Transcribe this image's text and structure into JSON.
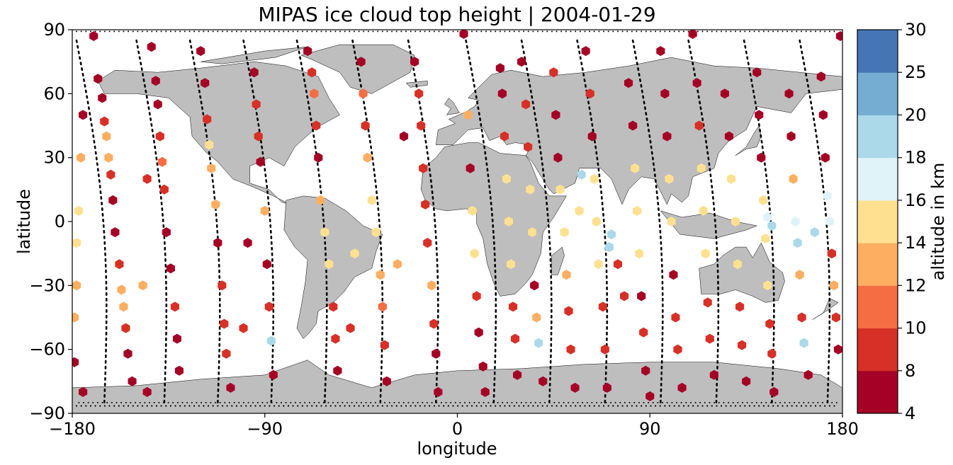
{
  "title": "MIPAS ice cloud top height | 2004-01-29",
  "colors": {
    "land": "#bebebe",
    "coast": "#000000",
    "track": "#000000",
    "bins": [
      "#a50026",
      "#d73027",
      "#f46d43",
      "#fdae61",
      "#fee090",
      "#e0f3f8",
      "#abd9e9",
      "#74add1",
      "#4575b4",
      "#313695"
    ]
  },
  "chart_data": {
    "type": "scatter",
    "title": "MIPAS ice cloud top height | 2004-01-29",
    "xlabel": "longitude",
    "ylabel": "latitude",
    "xlim": [
      -180,
      180
    ],
    "ylim": [
      -90,
      90
    ],
    "xticks": [
      -180,
      -90,
      0,
      90,
      180
    ],
    "xtick_labels": [
      "−180",
      "−90",
      "0",
      "90",
      "180"
    ],
    "yticks": [
      -90,
      -60,
      -30,
      0,
      30,
      60,
      90
    ],
    "ytick_labels": [
      "−90",
      "−60",
      "−30",
      "0",
      "30",
      "60",
      "90"
    ],
    "colorbar": {
      "label": "altitude in km",
      "boundaries": [
        4,
        8,
        10,
        12,
        14,
        16,
        18,
        20,
        25,
        30
      ],
      "tick_labels": [
        "4",
        "8",
        "10",
        "12",
        "14",
        "16",
        "18",
        "20",
        "25",
        "30"
      ],
      "colors": [
        "#a50026",
        "#d73027",
        "#f46d43",
        "#fdae61",
        "#fee090",
        "#e0f3f8",
        "#abd9e9",
        "#74add1",
        "#4575b4"
      ]
    },
    "orbits": [
      {
        "lon_start": -178,
        "lon_end": -165,
        "lat_start": 85,
        "lat_end": -85,
        "descending": true
      },
      {
        "lon_start": -150,
        "lon_end": -137,
        "lat_start": 85,
        "lat_end": -85,
        "descending": true
      },
      {
        "lon_start": -125,
        "lon_end": -112,
        "lat_start": 85,
        "lat_end": -85,
        "descending": true
      },
      {
        "lon_start": -100,
        "lon_end": -87,
        "lat_start": 85,
        "lat_end": -85,
        "descending": true
      },
      {
        "lon_start": -75,
        "lon_end": -62,
        "lat_start": 85,
        "lat_end": -85,
        "descending": true
      },
      {
        "lon_start": -49,
        "lon_end": -36,
        "lat_start": 85,
        "lat_end": -85,
        "descending": true
      },
      {
        "lon_start": -23,
        "lon_end": -10,
        "lat_start": 85,
        "lat_end": -85,
        "descending": true
      },
      {
        "lon_start": 4,
        "lon_end": 17,
        "lat_start": 85,
        "lat_end": -85,
        "descending": true
      },
      {
        "lon_start": 30,
        "lon_end": 43,
        "lat_start": 85,
        "lat_end": -85,
        "descending": true
      },
      {
        "lon_start": 56,
        "lon_end": 69,
        "lat_start": 85,
        "lat_end": -85,
        "descending": true
      },
      {
        "lon_start": 82,
        "lon_end": 95,
        "lat_start": 85,
        "lat_end": -85,
        "descending": true
      },
      {
        "lon_start": 108,
        "lon_end": 121,
        "lat_start": 85,
        "lat_end": -85,
        "descending": true
      },
      {
        "lon_start": 134,
        "lon_end": 147,
        "lat_start": 85,
        "lat_end": -85,
        "descending": true
      },
      {
        "lon_start": 160,
        "lon_end": 173,
        "lat_start": 85,
        "lat_end": -85,
        "descending": true
      }
    ],
    "points": [
      {
        "lon": -170,
        "lat": 87,
        "alt": 6
      },
      {
        "lon": -168,
        "lat": 67,
        "alt": 6
      },
      {
        "lon": -166,
        "lat": 58,
        "alt": 6
      },
      {
        "lon": -165,
        "lat": 47,
        "alt": 9
      },
      {
        "lon": -164,
        "lat": 40,
        "alt": 12
      },
      {
        "lon": -163,
        "lat": 30,
        "alt": 12
      },
      {
        "lon": -162,
        "lat": 22,
        "alt": 9
      },
      {
        "lon": -161,
        "lat": 10,
        "alt": 6
      },
      {
        "lon": -160,
        "lat": -5,
        "alt": 6
      },
      {
        "lon": -158,
        "lat": -20,
        "alt": 9
      },
      {
        "lon": -157,
        "lat": -32,
        "alt": 12
      },
      {
        "lon": -156,
        "lat": -40,
        "alt": 13
      },
      {
        "lon": -155,
        "lat": -50,
        "alt": 9
      },
      {
        "lon": -154,
        "lat": -62,
        "alt": 6
      },
      {
        "lon": -152,
        "lat": -75,
        "alt": 6
      },
      {
        "lon": -175,
        "lat": 50,
        "alt": 6
      },
      {
        "lon": -176,
        "lat": 30,
        "alt": 13
      },
      {
        "lon": -177,
        "lat": 5,
        "alt": 15
      },
      {
        "lon": -178,
        "lat": -10,
        "alt": 14
      },
      {
        "lon": -178,
        "lat": -30,
        "alt": 13
      },
      {
        "lon": -179,
        "lat": -45,
        "alt": 13
      },
      {
        "lon": -179,
        "lat": -66,
        "alt": 6
      },
      {
        "lon": -175,
        "lat": -80,
        "alt": 6
      },
      {
        "lon": -143,
        "lat": 82,
        "alt": 6
      },
      {
        "lon": -141,
        "lat": 66,
        "alt": 6
      },
      {
        "lon": -140,
        "lat": 55,
        "alt": 6
      },
      {
        "lon": -139,
        "lat": 40,
        "alt": 9
      },
      {
        "lon": -138,
        "lat": 28,
        "alt": 10
      },
      {
        "lon": -137,
        "lat": 15,
        "alt": 9
      },
      {
        "lon": -136,
        "lat": -5,
        "alt": 6
      },
      {
        "lon": -134,
        "lat": -22,
        "alt": 6
      },
      {
        "lon": -132,
        "lat": -40,
        "alt": 9
      },
      {
        "lon": -131,
        "lat": -55,
        "alt": 6
      },
      {
        "lon": -130,
        "lat": -70,
        "alt": 6
      },
      {
        "lon": -145,
        "lat": -80,
        "alt": 6
      },
      {
        "lon": -145,
        "lat": 20,
        "alt": 9
      },
      {
        "lon": -147,
        "lat": -30,
        "alt": 13
      },
      {
        "lon": -120,
        "lat": 80,
        "alt": 6
      },
      {
        "lon": -118,
        "lat": 65,
        "alt": 6
      },
      {
        "lon": -117,
        "lat": 48,
        "alt": 9
      },
      {
        "lon": -116,
        "lat": 36,
        "alt": 14
      },
      {
        "lon": -115,
        "lat": 25,
        "alt": 13
      },
      {
        "lon": -113,
        "lat": 8,
        "alt": 13
      },
      {
        "lon": -112,
        "lat": -10,
        "alt": 6
      },
      {
        "lon": -110,
        "lat": -30,
        "alt": 9
      },
      {
        "lon": -109,
        "lat": -48,
        "alt": 9
      },
      {
        "lon": -108,
        "lat": -62,
        "alt": 9
      },
      {
        "lon": -106,
        "lat": -78,
        "alt": 6
      },
      {
        "lon": -95,
        "lat": 70,
        "alt": 6
      },
      {
        "lon": -94,
        "lat": 55,
        "alt": 9
      },
      {
        "lon": -93,
        "lat": 40,
        "alt": 9
      },
      {
        "lon": -92,
        "lat": 28,
        "alt": 6
      },
      {
        "lon": -90,
        "lat": 5,
        "alt": 13
      },
      {
        "lon": -89,
        "lat": -20,
        "alt": 6
      },
      {
        "lon": -88,
        "lat": -40,
        "alt": 9
      },
      {
        "lon": -87,
        "lat": -56,
        "alt": 19
      },
      {
        "lon": -86,
        "lat": -72,
        "alt": 6
      },
      {
        "lon": -98,
        "lat": -10,
        "alt": 6
      },
      {
        "lon": -100,
        "lat": -50,
        "alt": 9
      },
      {
        "lon": -70,
        "lat": 80,
        "alt": 6
      },
      {
        "lon": -68,
        "lat": 70,
        "alt": 9
      },
      {
        "lon": -67,
        "lat": 60,
        "alt": 10
      },
      {
        "lon": -66,
        "lat": 45,
        "alt": 9
      },
      {
        "lon": -65,
        "lat": 30,
        "alt": 6
      },
      {
        "lon": -64,
        "lat": 10,
        "alt": 13
      },
      {
        "lon": -62,
        "lat": -5,
        "alt": 15
      },
      {
        "lon": -60,
        "lat": -20,
        "alt": 15
      },
      {
        "lon": -58,
        "lat": -40,
        "alt": 9
      },
      {
        "lon": -57,
        "lat": -55,
        "alt": 9
      },
      {
        "lon": -56,
        "lat": -70,
        "alt": 6
      },
      {
        "lon": -45,
        "lat": 75,
        "alt": 6
      },
      {
        "lon": -44,
        "lat": 60,
        "alt": 10
      },
      {
        "lon": -43,
        "lat": 45,
        "alt": 9
      },
      {
        "lon": -42,
        "lat": 30,
        "alt": 12
      },
      {
        "lon": -40,
        "lat": 10,
        "alt": 15
      },
      {
        "lon": -38,
        "lat": -5,
        "alt": 15
      },
      {
        "lon": -36,
        "lat": -25,
        "alt": 13
      },
      {
        "lon": -35,
        "lat": -40,
        "alt": 10
      },
      {
        "lon": -34,
        "lat": -58,
        "alt": 9
      },
      {
        "lon": -33,
        "lat": -75,
        "alt": 6
      },
      {
        "lon": -50,
        "lat": -50,
        "alt": 9
      },
      {
        "lon": -48,
        "lat": -15,
        "alt": 15
      },
      {
        "lon": -20,
        "lat": 75,
        "alt": 6
      },
      {
        "lon": -18,
        "lat": 60,
        "alt": 9
      },
      {
        "lon": -17,
        "lat": 45,
        "alt": 9
      },
      {
        "lon": -16,
        "lat": 25,
        "alt": 9
      },
      {
        "lon": -15,
        "lat": 8,
        "alt": 9
      },
      {
        "lon": -14,
        "lat": -10,
        "alt": 9
      },
      {
        "lon": -12,
        "lat": -30,
        "alt": 13
      },
      {
        "lon": -11,
        "lat": -48,
        "alt": 9
      },
      {
        "lon": -10,
        "lat": -62,
        "alt": 6
      },
      {
        "lon": -9,
        "lat": -80,
        "alt": 6
      },
      {
        "lon": -25,
        "lat": 40,
        "alt": 6
      },
      {
        "lon": -28,
        "lat": -20,
        "alt": 12
      },
      {
        "lon": 3,
        "lat": 88,
        "alt": 6
      },
      {
        "lon": 5,
        "lat": 50,
        "alt": 12
      },
      {
        "lon": 6,
        "lat": 25,
        "alt": 6
      },
      {
        "lon": 7,
        "lat": 5,
        "alt": 14
      },
      {
        "lon": 8,
        "lat": -15,
        "alt": 15
      },
      {
        "lon": 9,
        "lat": -35,
        "alt": 9
      },
      {
        "lon": 10,
        "lat": -52,
        "alt": 6
      },
      {
        "lon": 12,
        "lat": -68,
        "alt": 6
      },
      {
        "lon": 13,
        "lat": -80,
        "alt": 6
      },
      {
        "lon": 20,
        "lat": 72,
        "alt": 6
      },
      {
        "lon": 21,
        "lat": 60,
        "alt": 6
      },
      {
        "lon": 22,
        "lat": 40,
        "alt": 9
      },
      {
        "lon": 23,
        "lat": 20,
        "alt": 15
      },
      {
        "lon": 24,
        "lat": 0,
        "alt": 15
      },
      {
        "lon": 25,
        "lat": -20,
        "alt": 15
      },
      {
        "lon": 26,
        "lat": -40,
        "alt": 9
      },
      {
        "lon": 27,
        "lat": -55,
        "alt": 9
      },
      {
        "lon": 28,
        "lat": -72,
        "alt": 6
      },
      {
        "lon": 30,
        "lat": 75,
        "alt": 6
      },
      {
        "lon": 32,
        "lat": 55,
        "alt": 9
      },
      {
        "lon": 33,
        "lat": 35,
        "alt": 9
      },
      {
        "lon": 34,
        "lat": 15,
        "alt": 15
      },
      {
        "lon": 35,
        "lat": -5,
        "alt": 15
      },
      {
        "lon": 36,
        "lat": -30,
        "alt": 6
      },
      {
        "lon": 37,
        "lat": -45,
        "alt": 13
      },
      {
        "lon": 38,
        "lat": -57,
        "alt": 19
      },
      {
        "lon": 40,
        "lat": -75,
        "alt": 6
      },
      {
        "lon": 45,
        "lat": 70,
        "alt": 9
      },
      {
        "lon": 46,
        "lat": 50,
        "alt": 6
      },
      {
        "lon": 47,
        "lat": 30,
        "alt": 6
      },
      {
        "lon": 48,
        "lat": 15,
        "alt": 15
      },
      {
        "lon": 50,
        "lat": -5,
        "alt": 15
      },
      {
        "lon": 51,
        "lat": -25,
        "alt": 13
      },
      {
        "lon": 52,
        "lat": -42,
        "alt": 9
      },
      {
        "lon": 53,
        "lat": -60,
        "alt": 9
      },
      {
        "lon": 55,
        "lat": -78,
        "alt": 6
      },
      {
        "lon": 58,
        "lat": 22,
        "alt": 18
      },
      {
        "lon": 57,
        "lat": 5,
        "alt": 15
      },
      {
        "lon": 60,
        "lat": 80,
        "alt": 6
      },
      {
        "lon": 62,
        "lat": 60,
        "alt": 9
      },
      {
        "lon": 63,
        "lat": 40,
        "alt": 6
      },
      {
        "lon": 64,
        "lat": 20,
        "alt": 14
      },
      {
        "lon": 65,
        "lat": 0,
        "alt": 15
      },
      {
        "lon": 66,
        "lat": -20,
        "alt": 15
      },
      {
        "lon": 68,
        "lat": -40,
        "alt": 9
      },
      {
        "lon": 69,
        "lat": -60,
        "alt": 9
      },
      {
        "lon": 70,
        "lat": -78,
        "alt": 6
      },
      {
        "lon": 72,
        "lat": -6,
        "alt": 19
      },
      {
        "lon": 71,
        "lat": -12,
        "alt": 19
      },
      {
        "lon": 80,
        "lat": 65,
        "alt": 6
      },
      {
        "lon": 82,
        "lat": 45,
        "alt": 6
      },
      {
        "lon": 83,
        "lat": 25,
        "alt": 15
      },
      {
        "lon": 84,
        "lat": 5,
        "alt": 15
      },
      {
        "lon": 85,
        "lat": -15,
        "alt": 15
      },
      {
        "lon": 86,
        "lat": -35,
        "alt": 6
      },
      {
        "lon": 87,
        "lat": -52,
        "alt": 9
      },
      {
        "lon": 88,
        "lat": -70,
        "alt": 6
      },
      {
        "lon": 90,
        "lat": -82,
        "alt": 6
      },
      {
        "lon": 75,
        "lat": -20,
        "alt": 9
      },
      {
        "lon": 78,
        "lat": -35,
        "alt": 9
      },
      {
        "lon": 95,
        "lat": 80,
        "alt": 6
      },
      {
        "lon": 97,
        "lat": 60,
        "alt": 6
      },
      {
        "lon": 98,
        "lat": 40,
        "alt": 6
      },
      {
        "lon": 99,
        "lat": 20,
        "alt": 15
      },
      {
        "lon": 100,
        "lat": 0,
        "alt": 15
      },
      {
        "lon": 101,
        "lat": -25,
        "alt": 6
      },
      {
        "lon": 102,
        "lat": -45,
        "alt": 9
      },
      {
        "lon": 103,
        "lat": -60,
        "alt": 9
      },
      {
        "lon": 105,
        "lat": -78,
        "alt": 6
      },
      {
        "lon": 110,
        "lat": 88,
        "alt": 6
      },
      {
        "lon": 112,
        "lat": 65,
        "alt": 6
      },
      {
        "lon": 113,
        "lat": 45,
        "alt": 9
      },
      {
        "lon": 114,
        "lat": 25,
        "alt": 15
      },
      {
        "lon": 115,
        "lat": 5,
        "alt": 15
      },
      {
        "lon": 116,
        "lat": -15,
        "alt": 15
      },
      {
        "lon": 117,
        "lat": -38,
        "alt": 9
      },
      {
        "lon": 118,
        "lat": -55,
        "alt": 9
      },
      {
        "lon": 120,
        "lat": -72,
        "alt": 6
      },
      {
        "lon": 125,
        "lat": 60,
        "alt": 6
      },
      {
        "lon": 127,
        "lat": 40,
        "alt": 6
      },
      {
        "lon": 128,
        "lat": 20,
        "alt": 15
      },
      {
        "lon": 130,
        "lat": 0,
        "alt": 15
      },
      {
        "lon": 131,
        "lat": -20,
        "alt": 15
      },
      {
        "lon": 132,
        "lat": -40,
        "alt": 9
      },
      {
        "lon": 133,
        "lat": -58,
        "alt": 9
      },
      {
        "lon": 135,
        "lat": -75,
        "alt": 6
      },
      {
        "lon": 140,
        "lat": 70,
        "alt": 6
      },
      {
        "lon": 141,
        "lat": 50,
        "alt": 6
      },
      {
        "lon": 142,
        "lat": 30,
        "alt": 6
      },
      {
        "lon": 143,
        "lat": 10,
        "alt": 15
      },
      {
        "lon": 144,
        "lat": -8,
        "alt": 15
      },
      {
        "lon": 145,
        "lat": -30,
        "alt": 15
      },
      {
        "lon": 146,
        "lat": -48,
        "alt": 9
      },
      {
        "lon": 147,
        "lat": -62,
        "alt": 9
      },
      {
        "lon": 148,
        "lat": -80,
        "alt": 6
      },
      {
        "lon": 145,
        "lat": 2,
        "alt": 17
      },
      {
        "lon": 147,
        "lat": -2,
        "alt": 19
      },
      {
        "lon": 155,
        "lat": 60,
        "alt": 6
      },
      {
        "lon": 156,
        "lat": 40,
        "alt": 6
      },
      {
        "lon": 157,
        "lat": 20,
        "alt": 13
      },
      {
        "lon": 158,
        "lat": 0,
        "alt": 17
      },
      {
        "lon": 159,
        "lat": -10,
        "alt": 19
      },
      {
        "lon": 160,
        "lat": -25,
        "alt": 13
      },
      {
        "lon": 161,
        "lat": -45,
        "alt": 9
      },
      {
        "lon": 162,
        "lat": -57,
        "alt": 19
      },
      {
        "lon": 164,
        "lat": -72,
        "alt": 6
      },
      {
        "lon": 170,
        "lat": 68,
        "alt": 6
      },
      {
        "lon": 171,
        "lat": 50,
        "alt": 6
      },
      {
        "lon": 172,
        "lat": 30,
        "alt": 6
      },
      {
        "lon": 173,
        "lat": 12,
        "alt": 17
      },
      {
        "lon": 174,
        "lat": 0,
        "alt": 17
      },
      {
        "lon": 175,
        "lat": -15,
        "alt": 9
      },
      {
        "lon": 176,
        "lat": -30,
        "alt": 12
      },
      {
        "lon": 177,
        "lat": -45,
        "alt": 9
      },
      {
        "lon": 178,
        "lat": -60,
        "alt": 6
      },
      {
        "lon": 179,
        "lat": 87,
        "alt": 6
      },
      {
        "lon": 167,
        "lat": -5,
        "alt": 19
      }
    ]
  }
}
